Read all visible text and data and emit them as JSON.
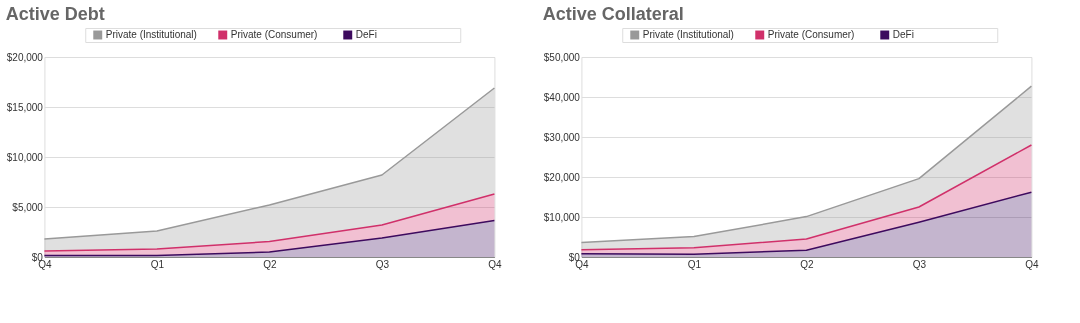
{
  "chart_data": [
    {
      "type": "area",
      "title": "Active Debt",
      "categories": [
        "Q4",
        "Q1",
        "Q2",
        "Q3",
        "Q4"
      ],
      "stacked": true,
      "grid": "y",
      "legend": "top",
      "ylim": [
        0,
        20000
      ],
      "yticks": [
        {
          "value": 0,
          "label": "$0"
        },
        {
          "value": 5000,
          "label": "$5,000"
        },
        {
          "value": 10000,
          "label": "$10,000"
        },
        {
          "value": 15000,
          "label": "$15,000"
        },
        {
          "value": 20000,
          "label": "$20,000"
        }
      ],
      "series": [
        {
          "name": "DeFi",
          "color": "#3d0a5e",
          "values": [
            150,
            150,
            500,
            1900,
            3650
          ]
        },
        {
          "name": "Private (Consumer)",
          "color": "#d0306a",
          "values": [
            450,
            650,
            1050,
            1300,
            2650
          ]
        },
        {
          "name": "Private (Institutional)",
          "color": "#999999",
          "values": [
            1200,
            1800,
            3650,
            5000,
            10600
          ]
        }
      ]
    },
    {
      "type": "area",
      "title": "Active Collateral",
      "categories": [
        "Q4",
        "Q1",
        "Q2",
        "Q3",
        "Q4"
      ],
      "stacked": true,
      "grid": "y",
      "legend": "top",
      "ylim": [
        0,
        50000
      ],
      "yticks": [
        {
          "value": 0,
          "label": "$0"
        },
        {
          "value": 10000,
          "label": "$10,000"
        },
        {
          "value": 20000,
          "label": "$20,000"
        },
        {
          "value": 30000,
          "label": "$30,000"
        },
        {
          "value": 40000,
          "label": "$40,000"
        },
        {
          "value": 50000,
          "label": "$50,000"
        }
      ],
      "series": [
        {
          "name": "DeFi",
          "color": "#3d0a5e",
          "values": [
            800,
            700,
            1700,
            8700,
            16200
          ]
        },
        {
          "name": "Private (Consumer)",
          "color": "#d0306a",
          "values": [
            1000,
            1600,
            2800,
            3800,
            11800
          ]
        },
        {
          "name": "Private (Institutional)",
          "color": "#999999",
          "values": [
            1800,
            2800,
            5600,
            7100,
            14700
          ]
        }
      ]
    }
  ]
}
